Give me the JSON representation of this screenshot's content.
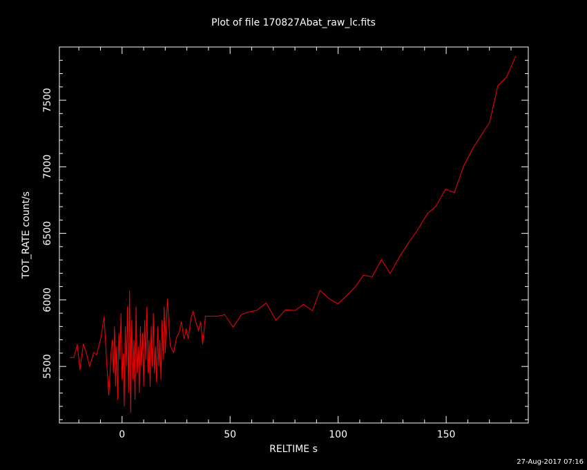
{
  "chart_data": {
    "type": "line",
    "title": "Plot of file 170827Abat_raw_lc.fits",
    "xlabel": "RELTIME  s",
    "ylabel": "TOT_RATE  count/s",
    "footer": "27-Aug-2017 07:16",
    "xlim": [
      -29,
      188
    ],
    "ylim": [
      5075,
      7900
    ],
    "xticks": [
      0,
      50,
      100,
      150
    ],
    "yticks": [
      5500,
      6000,
      6500,
      7000,
      7500
    ],
    "minor_xticks": [
      -20,
      -10,
      10,
      20,
      30,
      40,
      60,
      70,
      80,
      90,
      110,
      120,
      130,
      140,
      160,
      170,
      180
    ],
    "minor_yticks": [
      5100,
      5200,
      5300,
      5400,
      5600,
      5700,
      5800,
      5900,
      6100,
      6200,
      6300,
      6400,
      6600,
      6700,
      6800,
      6900,
      7100,
      7200,
      7300,
      7400,
      7600,
      7700,
      7800
    ],
    "background": "#000000",
    "axis_color": "#ffffff",
    "series": [
      {
        "color": "#ff0000",
        "x": [
          -24.2,
          -22.3,
          -20.7,
          -19.5,
          -17.9,
          -16.6,
          -15,
          -13.1,
          -11.8,
          -9.9,
          -8.3,
          -7,
          -6.1,
          -5.1,
          -4.5,
          -4,
          -3.5,
          -3,
          -2.5,
          -2,
          -1.5,
          -1,
          -0.5,
          0,
          0.5,
          1,
          1.5,
          2,
          2.5,
          3,
          3.5,
          4,
          4.5,
          5,
          5.5,
          6,
          6.5,
          7,
          7.5,
          8,
          8.5,
          9,
          9.5,
          10,
          10.5,
          11,
          11.5,
          12,
          12.5,
          13,
          13.5,
          14,
          14.5,
          15,
          15.5,
          16,
          16.5,
          17,
          17.5,
          18,
          18.5,
          19,
          19.5,
          20,
          21,
          22.3,
          23.9,
          25.2,
          26.5,
          27.4,
          28.7,
          29.7,
          30.6,
          31.9,
          32.9,
          34.1,
          35.4,
          36.4,
          37.3,
          38.6,
          44.4,
          47.5,
          51.4,
          55.2,
          58.4,
          62.2,
          66.7,
          71.2,
          75.6,
          80.1,
          83.9,
          88.1,
          91.6,
          96,
          99.9,
          103.7,
          107.8,
          111.7,
          115.8,
          120,
          124.1,
          128.6,
          132.7,
          136.6,
          141.4,
          145.2,
          149.7,
          153.8,
          158,
          162.4,
          166.2,
          170.1,
          173.9,
          178,
          182.2
        ],
        "values": [
          5567,
          5567,
          5666,
          5474,
          5671,
          5604,
          5500,
          5604,
          5588,
          5707,
          5873,
          5500,
          5282,
          5604,
          5700,
          5450,
          5800,
          5350,
          5650,
          5250,
          5750,
          5550,
          5900,
          5400,
          5600,
          5200,
          5800,
          5500,
          5950,
          5300,
          6070,
          5150,
          5850,
          5400,
          5700,
          5250,
          5950,
          5450,
          5650,
          5300,
          5800,
          5500,
          5750,
          5350,
          5850,
          5550,
          5950,
          5450,
          5700,
          5350,
          5800,
          5500,
          5900,
          5450,
          5650,
          5380,
          5800,
          5500,
          5700,
          5400,
          5850,
          5550,
          5950,
          5600,
          6008,
          5655,
          5604,
          5718,
          5759,
          5837,
          5707,
          5785,
          5707,
          5863,
          5914,
          5837,
          5769,
          5837,
          5666,
          5878,
          5878,
          5889,
          5795,
          5889,
          5909,
          5920,
          5977,
          5847,
          5925,
          5920,
          5966,
          5920,
          6070,
          6008,
          5971,
          6028,
          6096,
          6184,
          6174,
          6303,
          6199,
          6329,
          6433,
          6521,
          6650,
          6702,
          6832,
          6806,
          7003,
          7142,
          7236,
          7334,
          7609,
          7676,
          7832
        ]
      }
    ]
  }
}
